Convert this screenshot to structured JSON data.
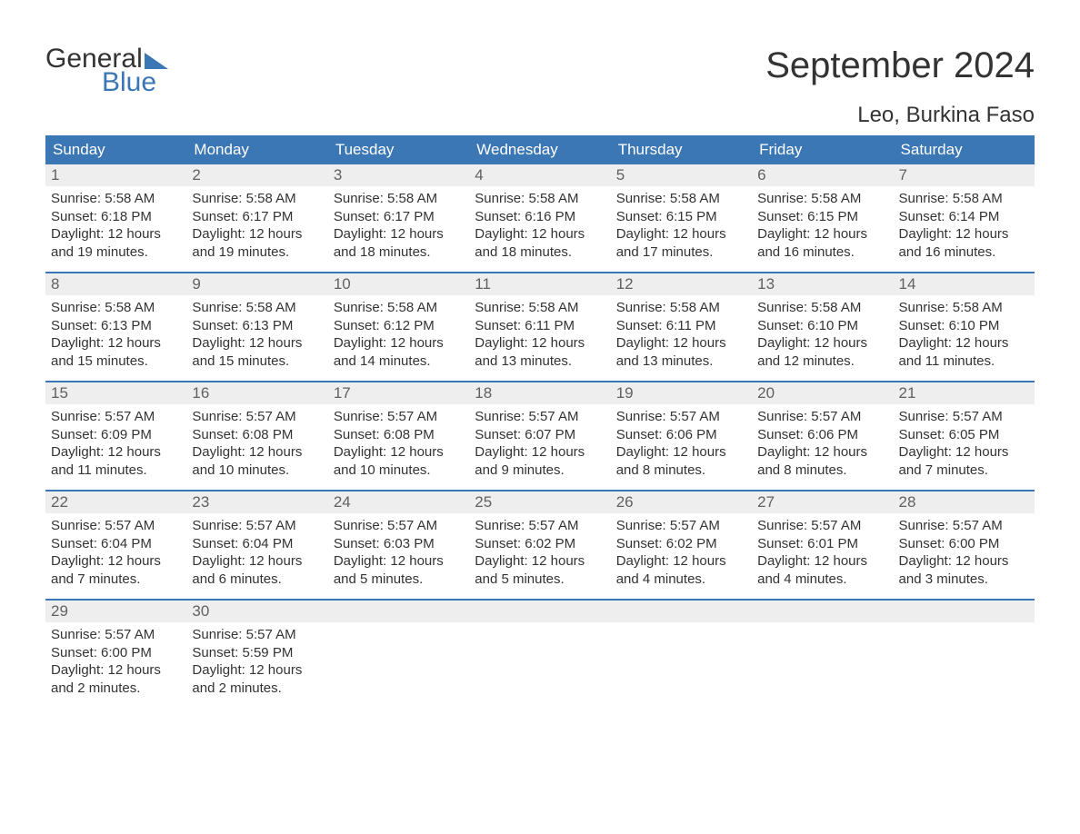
{
  "logo": {
    "top": "General",
    "bottom": "Blue"
  },
  "title": "September 2024",
  "subtitle": "Leo, Burkina Faso",
  "colors": {
    "accent": "#3b76b5",
    "header_bg": "#3b76b5",
    "header_text": "#ffffff",
    "daynum_bg": "#eeeeee",
    "daynum_text": "#616161",
    "body_text": "#333333",
    "week_border": "#3b76b5",
    "background": "#ffffff"
  },
  "fonts": {
    "title_size_pt": 30,
    "subtitle_size_pt": 18,
    "dow_size_pt": 13,
    "daynum_size_pt": 13,
    "body_size_pt": 11
  },
  "days_of_week": [
    "Sunday",
    "Monday",
    "Tuesday",
    "Wednesday",
    "Thursday",
    "Friday",
    "Saturday"
  ],
  "weeks": [
    [
      {
        "n": "1",
        "sunrise": "Sunrise: 5:58 AM",
        "sunset": "Sunset: 6:18 PM",
        "d1": "Daylight: 12 hours",
        "d2": "and 19 minutes."
      },
      {
        "n": "2",
        "sunrise": "Sunrise: 5:58 AM",
        "sunset": "Sunset: 6:17 PM",
        "d1": "Daylight: 12 hours",
        "d2": "and 19 minutes."
      },
      {
        "n": "3",
        "sunrise": "Sunrise: 5:58 AM",
        "sunset": "Sunset: 6:17 PM",
        "d1": "Daylight: 12 hours",
        "d2": "and 18 minutes."
      },
      {
        "n": "4",
        "sunrise": "Sunrise: 5:58 AM",
        "sunset": "Sunset: 6:16 PM",
        "d1": "Daylight: 12 hours",
        "d2": "and 18 minutes."
      },
      {
        "n": "5",
        "sunrise": "Sunrise: 5:58 AM",
        "sunset": "Sunset: 6:15 PM",
        "d1": "Daylight: 12 hours",
        "d2": "and 17 minutes."
      },
      {
        "n": "6",
        "sunrise": "Sunrise: 5:58 AM",
        "sunset": "Sunset: 6:15 PM",
        "d1": "Daylight: 12 hours",
        "d2": "and 16 minutes."
      },
      {
        "n": "7",
        "sunrise": "Sunrise: 5:58 AM",
        "sunset": "Sunset: 6:14 PM",
        "d1": "Daylight: 12 hours",
        "d2": "and 16 minutes."
      }
    ],
    [
      {
        "n": "8",
        "sunrise": "Sunrise: 5:58 AM",
        "sunset": "Sunset: 6:13 PM",
        "d1": "Daylight: 12 hours",
        "d2": "and 15 minutes."
      },
      {
        "n": "9",
        "sunrise": "Sunrise: 5:58 AM",
        "sunset": "Sunset: 6:13 PM",
        "d1": "Daylight: 12 hours",
        "d2": "and 15 minutes."
      },
      {
        "n": "10",
        "sunrise": "Sunrise: 5:58 AM",
        "sunset": "Sunset: 6:12 PM",
        "d1": "Daylight: 12 hours",
        "d2": "and 14 minutes."
      },
      {
        "n": "11",
        "sunrise": "Sunrise: 5:58 AM",
        "sunset": "Sunset: 6:11 PM",
        "d1": "Daylight: 12 hours",
        "d2": "and 13 minutes."
      },
      {
        "n": "12",
        "sunrise": "Sunrise: 5:58 AM",
        "sunset": "Sunset: 6:11 PM",
        "d1": "Daylight: 12 hours",
        "d2": "and 13 minutes."
      },
      {
        "n": "13",
        "sunrise": "Sunrise: 5:58 AM",
        "sunset": "Sunset: 6:10 PM",
        "d1": "Daylight: 12 hours",
        "d2": "and 12 minutes."
      },
      {
        "n": "14",
        "sunrise": "Sunrise: 5:58 AM",
        "sunset": "Sunset: 6:10 PM",
        "d1": "Daylight: 12 hours",
        "d2": "and 11 minutes."
      }
    ],
    [
      {
        "n": "15",
        "sunrise": "Sunrise: 5:57 AM",
        "sunset": "Sunset: 6:09 PM",
        "d1": "Daylight: 12 hours",
        "d2": "and 11 minutes."
      },
      {
        "n": "16",
        "sunrise": "Sunrise: 5:57 AM",
        "sunset": "Sunset: 6:08 PM",
        "d1": "Daylight: 12 hours",
        "d2": "and 10 minutes."
      },
      {
        "n": "17",
        "sunrise": "Sunrise: 5:57 AM",
        "sunset": "Sunset: 6:08 PM",
        "d1": "Daylight: 12 hours",
        "d2": "and 10 minutes."
      },
      {
        "n": "18",
        "sunrise": "Sunrise: 5:57 AM",
        "sunset": "Sunset: 6:07 PM",
        "d1": "Daylight: 12 hours",
        "d2": "and 9 minutes."
      },
      {
        "n": "19",
        "sunrise": "Sunrise: 5:57 AM",
        "sunset": "Sunset: 6:06 PM",
        "d1": "Daylight: 12 hours",
        "d2": "and 8 minutes."
      },
      {
        "n": "20",
        "sunrise": "Sunrise: 5:57 AM",
        "sunset": "Sunset: 6:06 PM",
        "d1": "Daylight: 12 hours",
        "d2": "and 8 minutes."
      },
      {
        "n": "21",
        "sunrise": "Sunrise: 5:57 AM",
        "sunset": "Sunset: 6:05 PM",
        "d1": "Daylight: 12 hours",
        "d2": "and 7 minutes."
      }
    ],
    [
      {
        "n": "22",
        "sunrise": "Sunrise: 5:57 AM",
        "sunset": "Sunset: 6:04 PM",
        "d1": "Daylight: 12 hours",
        "d2": "and 7 minutes."
      },
      {
        "n": "23",
        "sunrise": "Sunrise: 5:57 AM",
        "sunset": "Sunset: 6:04 PM",
        "d1": "Daylight: 12 hours",
        "d2": "and 6 minutes."
      },
      {
        "n": "24",
        "sunrise": "Sunrise: 5:57 AM",
        "sunset": "Sunset: 6:03 PM",
        "d1": "Daylight: 12 hours",
        "d2": "and 5 minutes."
      },
      {
        "n": "25",
        "sunrise": "Sunrise: 5:57 AM",
        "sunset": "Sunset: 6:02 PM",
        "d1": "Daylight: 12 hours",
        "d2": "and 5 minutes."
      },
      {
        "n": "26",
        "sunrise": "Sunrise: 5:57 AM",
        "sunset": "Sunset: 6:02 PM",
        "d1": "Daylight: 12 hours",
        "d2": "and 4 minutes."
      },
      {
        "n": "27",
        "sunrise": "Sunrise: 5:57 AM",
        "sunset": "Sunset: 6:01 PM",
        "d1": "Daylight: 12 hours",
        "d2": "and 4 minutes."
      },
      {
        "n": "28",
        "sunrise": "Sunrise: 5:57 AM",
        "sunset": "Sunset: 6:00 PM",
        "d1": "Daylight: 12 hours",
        "d2": "and 3 minutes."
      }
    ],
    [
      {
        "n": "29",
        "sunrise": "Sunrise: 5:57 AM",
        "sunset": "Sunset: 6:00 PM",
        "d1": "Daylight: 12 hours",
        "d2": "and 2 minutes."
      },
      {
        "n": "30",
        "sunrise": "Sunrise: 5:57 AM",
        "sunset": "Sunset: 5:59 PM",
        "d1": "Daylight: 12 hours",
        "d2": "and 2 minutes."
      },
      {
        "empty": true
      },
      {
        "empty": true
      },
      {
        "empty": true
      },
      {
        "empty": true
      },
      {
        "empty": true
      }
    ]
  ]
}
